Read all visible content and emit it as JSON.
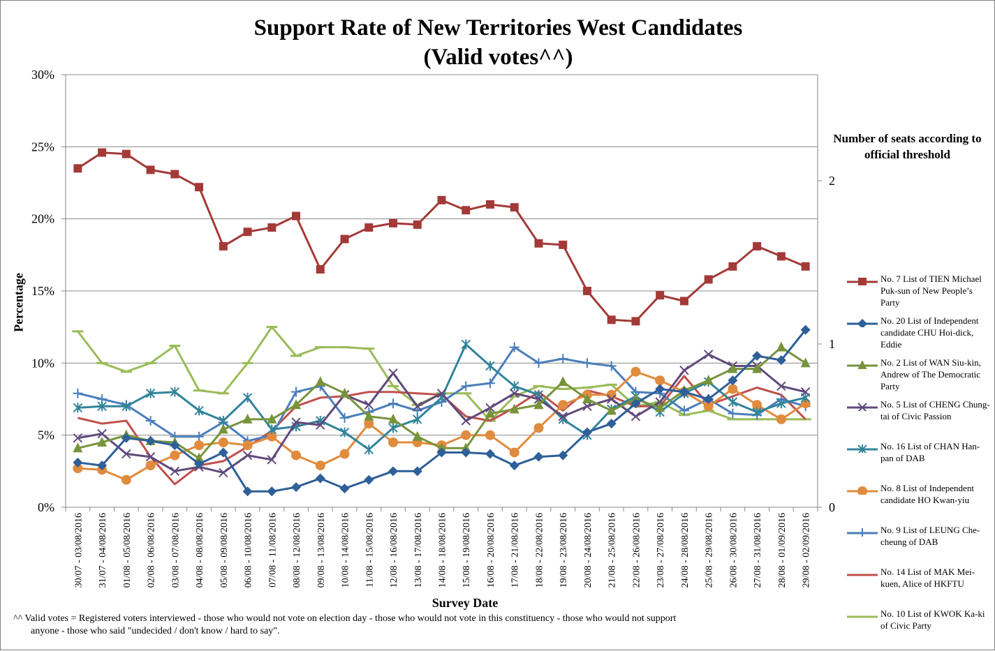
{
  "chart_data": {
    "type": "line",
    "title": "Support Rate of New Territories West Candidates",
    "subtitle": "(Valid votes^^)",
    "xlabel": "Survey Date",
    "ylabel": "Percentage",
    "right_axis_title": "Number of seats according to official threshold",
    "ylim": [
      0,
      30
    ],
    "y_ticks": [
      "0%",
      "5%",
      "10%",
      "15%",
      "20%",
      "25%",
      "30%"
    ],
    "right_y_ticks": [
      "0",
      "1",
      "2"
    ],
    "right_ylim": [
      0,
      2.65
    ],
    "categories": [
      "30/07 - 03/08/2016",
      "31/07 - 04/08/2016",
      "01/08 - 05/08/2016",
      "02/08 - 06/08/2016",
      "03/08 - 07/08/2016",
      "04/08 - 08/08/2016",
      "05/08 - 09/08/2016",
      "06/08 - 10/08/2016",
      "07/08 - 11/08/2016",
      "08/08 - 12/08/2016",
      "09/08 - 13/08/2016",
      "10/08 - 14/08/2016",
      "11/08 - 15/08/2016",
      "12/08 - 16/08/2016",
      "13/08 - 17/08/2016",
      "14/08 - 18/08/2016",
      "15/08 - 19/08/2016",
      "16/08 - 20/08/2016",
      "17/08 - 21/08/2016",
      "18/08 - 22/08/2016",
      "19/08 - 23/08/2016",
      "20/08 - 24/08/2016",
      "21/08 - 25/08/2016",
      "22/08 - 26/08/2016",
      "23/08 - 27/08/2016",
      "24/08 - 28/08/2016",
      "25/08 - 29/08/2016",
      "26/08 - 30/08/2016",
      "27/08 - 31/08/2016",
      "28/08 - 01/09/2016",
      "29/08 - 02/09/2016"
    ],
    "grid": true,
    "legend_position": "right",
    "series": [
      {
        "name": "No. 7 List of TIEN Michael Puk-sun of New People’s Party",
        "color": "#a33a38",
        "marker": "square",
        "values": [
          23.5,
          24.6,
          24.5,
          23.4,
          23.1,
          22.2,
          18.1,
          19.1,
          19.4,
          20.2,
          16.5,
          18.6,
          19.4,
          19.7,
          19.6,
          21.3,
          20.6,
          21.0,
          20.8,
          18.3,
          18.2,
          15.0,
          13.0,
          12.9,
          14.7,
          14.3,
          15.8,
          16.7,
          18.1,
          17.4,
          16.7
        ]
      },
      {
        "name": "No. 20 List of Independent candidate CHU Hoi-dick, Eddie",
        "color": "#2e5f98",
        "marker": "diamond",
        "values": [
          3.1,
          2.9,
          4.8,
          4.6,
          4.3,
          3.0,
          3.8,
          1.1,
          1.1,
          1.4,
          2.0,
          1.3,
          1.9,
          2.5,
          2.5,
          3.8,
          3.8,
          3.7,
          2.9,
          3.5,
          3.6,
          5.2,
          5.8,
          7.2,
          8.2,
          8.0,
          7.5,
          8.8,
          10.5,
          10.2,
          12.3
        ]
      },
      {
        "name": "No. 2 List of WAN Siu-kin, Andrew of The Democratic Party",
        "color": "#77933c",
        "marker": "triangle",
        "values": [
          4.1,
          4.5,
          5.0,
          4.6,
          4.5,
          3.4,
          5.4,
          6.1,
          6.1,
          7.1,
          8.7,
          7.9,
          6.3,
          6.1,
          4.9,
          4.1,
          4.1,
          6.5,
          6.8,
          7.1,
          8.7,
          7.5,
          6.7,
          7.5,
          6.9,
          8.1,
          8.8,
          9.6,
          9.6,
          11.1,
          10.0
        ]
      },
      {
        "name": "No. 5 List of CHENG Chung-tai of Civic Passion",
        "color": "#604a7b",
        "marker": "x",
        "values": [
          4.8,
          5.1,
          3.7,
          3.5,
          2.5,
          2.8,
          2.4,
          3.6,
          3.3,
          5.9,
          5.7,
          7.8,
          7.1,
          9.3,
          7.0,
          7.9,
          6.0,
          6.9,
          7.9,
          7.5,
          6.3,
          7.0,
          7.5,
          6.3,
          7.3,
          9.5,
          10.6,
          9.8,
          9.8,
          8.4,
          8.0
        ]
      },
      {
        "name": "No. 16 List of CHAN Han-pan of DAB",
        "color": "#31849b",
        "marker": "star",
        "values": [
          6.9,
          7.0,
          7.0,
          7.9,
          8.0,
          6.7,
          6.0,
          7.6,
          5.4,
          5.6,
          6.0,
          5.2,
          4.0,
          5.5,
          6.1,
          7.6,
          11.3,
          9.8,
          8.4,
          7.8,
          6.1,
          5.0,
          6.8,
          7.7,
          6.6,
          7.9,
          8.7,
          7.3,
          6.6,
          7.2,
          7.6
        ]
      },
      {
        "name": "No. 8 List of Independent candidate HO Kwan-yiu",
        "color": "#e08b3d",
        "marker": "circle",
        "values": [
          2.7,
          2.6,
          1.9,
          2.9,
          3.6,
          4.3,
          4.5,
          4.3,
          4.9,
          3.6,
          2.9,
          3.7,
          5.8,
          4.5,
          4.5,
          4.3,
          5.0,
          5.0,
          3.8,
          5.5,
          7.1,
          7.8,
          7.8,
          9.4,
          8.8,
          8.0,
          7.0,
          8.2,
          7.1,
          6.1,
          7.2
        ]
      },
      {
        "name": "No. 9 List of LEUNG Che-cheung of DAB",
        "color": "#4a7ebb",
        "marker": "plus",
        "values": [
          7.9,
          7.5,
          7.1,
          6.0,
          4.9,
          4.9,
          5.9,
          4.6,
          5.0,
          8.0,
          8.4,
          6.2,
          6.6,
          7.2,
          6.7,
          7.3,
          8.4,
          8.6,
          11.1,
          10.0,
          10.3,
          10.0,
          9.8,
          8.0,
          7.9,
          6.7,
          7.5,
          6.5,
          6.4,
          7.5,
          7.0
        ]
      },
      {
        "name": "No. 14 List of MAK Mei-kuen, Alice of HKFTU",
        "color": "#c0504d",
        "marker": "none",
        "values": [
          6.2,
          5.8,
          6.0,
          3.5,
          1.6,
          2.9,
          3.2,
          4.2,
          5.3,
          7.0,
          7.6,
          7.7,
          8.0,
          8.0,
          7.9,
          7.8,
          6.3,
          6.0,
          6.9,
          8.0,
          6.7,
          8.1,
          7.7,
          7.0,
          7.0,
          9.1,
          7.1,
          7.7,
          8.3,
          7.8,
          6.1
        ]
      },
      {
        "name": "No. 10 List of KWOK Ka-ki of Civic Party",
        "color": "#9bbb59",
        "marker": "dash",
        "values": [
          12.2,
          10.0,
          9.4,
          10.0,
          11.2,
          8.1,
          7.9,
          10.0,
          12.5,
          10.5,
          11.1,
          11.1,
          11.0,
          8.4,
          7.1,
          7.9,
          7.9,
          6.0,
          7.7,
          8.4,
          8.2,
          8.3,
          8.5,
          7.0,
          7.3,
          6.4,
          6.7,
          6.1,
          6.1,
          6.1,
          6.1
        ]
      }
    ]
  },
  "footnote_line1": "^^ Valid votes = Registered voters interviewed - those who would not vote on election day - those who would not vote in this constituency - those who would not support",
  "footnote_line2": "anyone - those who said \"undecided / don't know / hard to say\"."
}
